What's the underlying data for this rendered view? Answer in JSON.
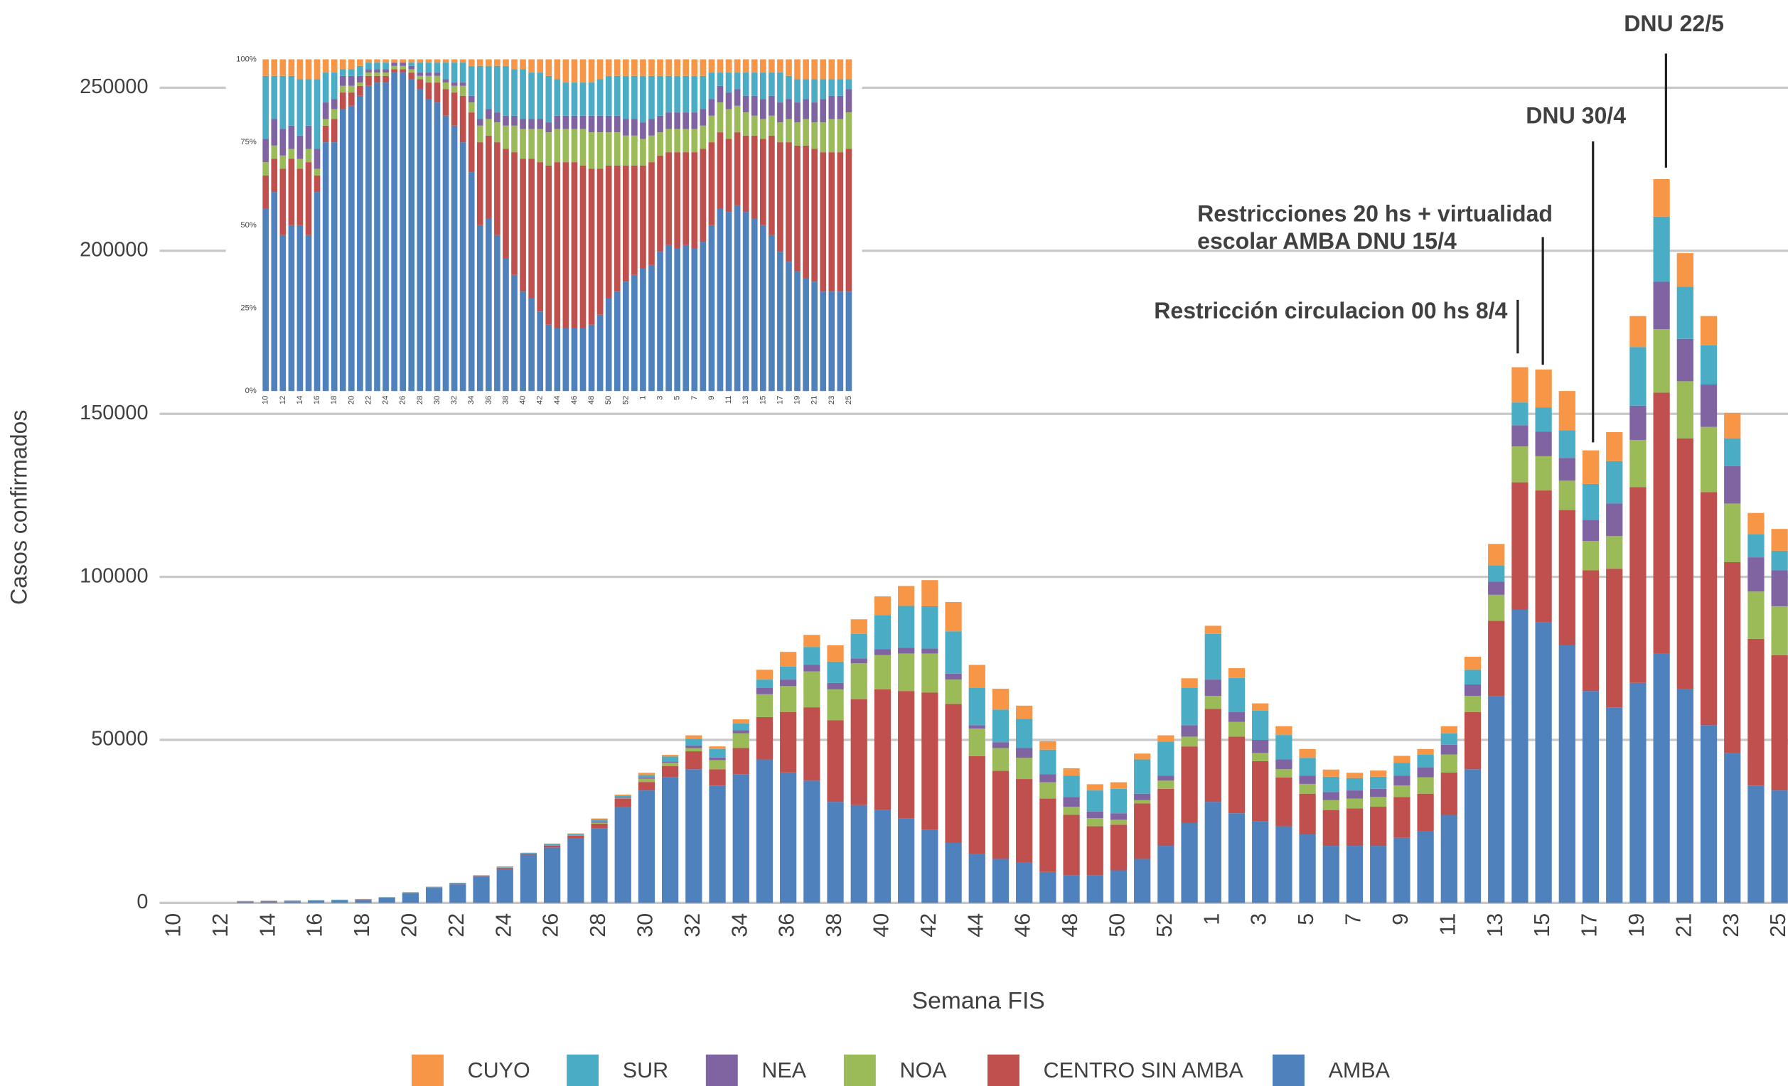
{
  "chart_data": [
    {
      "type": "bar",
      "stacked": true,
      "x_label": "Semana FIS",
      "y_label": "Casos confirmados",
      "categories": [
        "10",
        null,
        "12",
        null,
        "14",
        null,
        "16",
        null,
        "18",
        null,
        "20",
        null,
        "22",
        null,
        "24",
        null,
        "26",
        null,
        "28",
        null,
        "30",
        null,
        "32",
        null,
        "34",
        null,
        "36",
        null,
        "38",
        null,
        "40",
        null,
        "42",
        null,
        "44",
        null,
        "46",
        null,
        "48",
        null,
        "50",
        null,
        "52",
        null,
        "1",
        null,
        "3",
        null,
        "5",
        null,
        "7",
        null,
        "9",
        null,
        "11",
        null,
        "13",
        null,
        "15",
        null,
        "17",
        null,
        "19",
        null,
        "21",
        null,
        "23",
        null,
        "25"
      ],
      "ylim": [
        0,
        250000
      ],
      "yticks": [
        0,
        50000,
        100000,
        150000,
        200000,
        250000
      ],
      "grid": true,
      "legend": "bottom",
      "annotations": [
        [
          "Restricción circulacion 00 hs  8/4"
        ],
        [
          "Restricciones  20  hs  +  virtualidad",
          "escolar AMBA DNU  15/4"
        ],
        [
          "DNU 30/4"
        ],
        [
          "DNU 22/5"
        ]
      ],
      "series": [
        {
          "name": "AMBA",
          "color": "#4f81bd",
          "values": [
            0,
            0,
            0,
            380,
            420,
            480,
            560,
            620,
            900,
            1500,
            2800,
            4500,
            5700,
            8000,
            10400,
            14800,
            17000,
            19800,
            22800,
            29500,
            34500,
            38500,
            41000,
            36000,
            39500,
            44000,
            40000,
            37500,
            31000,
            30000,
            28500,
            26000,
            22500,
            18500,
            15000,
            13500,
            12500,
            9500,
            8500,
            8500,
            10000,
            13500,
            17500,
            24500,
            31000,
            27500,
            25000,
            23500,
            21000,
            17500,
            17500,
            17500,
            20000,
            22000,
            27000,
            41000,
            63500,
            90000,
            86000,
            79000,
            65000,
            60000,
            67500,
            76500,
            65500,
            54500,
            46000,
            36000,
            34500
          ]
        },
        {
          "name": "CENTRO SIN AMBA",
          "color": "#c0504d",
          "values": [
            0,
            0,
            0,
            70,
            90,
            100,
            160,
            130,
            120,
            100,
            150,
            200,
            250,
            250,
            400,
            300,
            600,
            800,
            1500,
            2500,
            2600,
            3500,
            5500,
            5000,
            8000,
            13000,
            18500,
            22500,
            25000,
            32500,
            37000,
            39000,
            42000,
            42500,
            30000,
            27000,
            25500,
            22500,
            18500,
            15000,
            14000,
            17000,
            17500,
            23500,
            28500,
            23500,
            18500,
            15000,
            12500,
            11000,
            11500,
            12000,
            12500,
            11500,
            13000,
            17500,
            23000,
            39000,
            40500,
            41500,
            37000,
            42500,
            60000,
            80000,
            77000,
            71500,
            58500,
            45000,
            41500
          ]
        },
        {
          "name": "NOA",
          "color": "#9bbb59",
          "values": [
            0,
            0,
            0,
            20,
            30,
            30,
            30,
            30,
            20,
            20,
            30,
            30,
            30,
            30,
            50,
            40,
            60,
            100,
            300,
            200,
            1000,
            1000,
            1000,
            2800,
            4500,
            7000,
            8000,
            11000,
            9500,
            11000,
            10500,
            11500,
            12000,
            7500,
            8500,
            7000,
            6500,
            5000,
            2500,
            2500,
            1500,
            1000,
            2500,
            3000,
            4000,
            4500,
            2500,
            2500,
            3000,
            3000,
            3000,
            3000,
            3500,
            5000,
            5500,
            5000,
            8000,
            11000,
            10500,
            9000,
            9000,
            10000,
            14500,
            19500,
            17500,
            20000,
            18000,
            14500,
            15000
          ]
        },
        {
          "name": "NEA",
          "color": "#8064a2",
          "values": [
            0,
            0,
            0,
            30,
            50,
            60,
            30,
            40,
            30,
            30,
            40,
            40,
            40,
            40,
            50,
            40,
            80,
            100,
            300,
            300,
            400,
            400,
            800,
            800,
            1000,
            2000,
            2000,
            2000,
            2000,
            1500,
            1800,
            1800,
            1500,
            1800,
            1000,
            1800,
            3000,
            2500,
            3000,
            2000,
            2000,
            2000,
            1500,
            3500,
            5000,
            3000,
            4000,
            3000,
            2500,
            2500,
            2500,
            2500,
            3000,
            3000,
            3000,
            3500,
            4000,
            6500,
            7500,
            7000,
            6500,
            10000,
            10500,
            14500,
            13000,
            13000,
            11500,
            10500,
            11000
          ]
        },
        {
          "name": "SUR",
          "color": "#4bacc6",
          "values": [
            0,
            0,
            0,
            80,
            90,
            110,
            100,
            150,
            100,
            120,
            230,
            180,
            140,
            140,
            250,
            200,
            400,
            400,
            700,
            400,
            700,
            1500,
            2000,
            2600,
            2000,
            2500,
            4000,
            5500,
            6500,
            7500,
            10500,
            12800,
            13000,
            13000,
            11500,
            10000,
            9000,
            7500,
            6500,
            6500,
            7500,
            10500,
            10500,
            11500,
            14000,
            10500,
            9000,
            7500,
            5500,
            4700,
            3800,
            3700,
            4000,
            4000,
            3500,
            4500,
            5000,
            7000,
            7500,
            8500,
            11000,
            13000,
            18000,
            20000,
            16000,
            12000,
            8500,
            7000,
            6000
          ]
        },
        {
          "name": "CUYO",
          "color": "#f79646",
          "values": [
            0,
            0,
            0,
            20,
            20,
            20,
            20,
            30,
            30,
            30,
            50,
            50,
            40,
            40,
            50,
            20,
            60,
            100,
            300,
            300,
            700,
            500,
            1100,
            800,
            1300,
            3000,
            4500,
            3700,
            5000,
            4500,
            5700,
            6100,
            8000,
            9000,
            7000,
            6400,
            4000,
            2600,
            2300,
            1900,
            2000,
            1800,
            1900,
            2900,
            2500,
            3000,
            2200,
            2700,
            2700,
            2200,
            1600,
            1900,
            2100,
            1700,
            2200,
            4000,
            6600,
            10800,
            11600,
            12000,
            10300,
            8900,
            9500,
            11500,
            10300,
            9000,
            7800,
            6600,
            6700
          ]
        }
      ]
    },
    {
      "type": "bar",
      "stacked": true,
      "categories": [
        "10",
        null,
        "12",
        null,
        "14",
        null,
        "16",
        null,
        "18",
        null,
        "20",
        null,
        "22",
        null,
        "24",
        null,
        "26",
        null,
        "28",
        null,
        "30",
        null,
        "32",
        null,
        "34",
        null,
        "36",
        null,
        "38",
        null,
        "40",
        null,
        "42",
        null,
        "44",
        null,
        "46",
        null,
        "48",
        null,
        "50",
        null,
        "52",
        null,
        "1",
        null,
        "3",
        null,
        "5",
        null,
        "7",
        null,
        "9",
        null,
        "11",
        null,
        "13",
        null,
        "15",
        null,
        "17",
        null,
        "19",
        null,
        "21",
        null,
        "23",
        null,
        "25"
      ],
      "ylim": [
        0,
        100
      ],
      "yticks": [
        {
          "value": 0,
          "label": "0%"
        },
        {
          "value": 25,
          "label": "25%"
        },
        {
          "value": 50,
          "label": "50%"
        },
        {
          "value": 75,
          "label": "75%"
        },
        {
          "value": 100,
          "label": "100%"
        }
      ],
      "grid": false,
      "series": [
        {
          "name": "AMBA",
          "color": "#4f81bd",
          "values": [
            55,
            60,
            47,
            50,
            50,
            47,
            60,
            75,
            75,
            85,
            86,
            89,
            92,
            93,
            93,
            96,
            96,
            94,
            91,
            88,
            87,
            83,
            80,
            75,
            66,
            50,
            52,
            47,
            40,
            35,
            30,
            28,
            24,
            20,
            19,
            19,
            19,
            19,
            20,
            23,
            28,
            30,
            33,
            35,
            37,
            38,
            42,
            44,
            43,
            44,
            43,
            45,
            50,
            55,
            54,
            56,
            54,
            52,
            50,
            47,
            42,
            39,
            36,
            34,
            33,
            30,
            30,
            30,
            30
          ]
        },
        {
          "name": "CENTRO SIN AMBA",
          "color": "#c0504d",
          "values": [
            10,
            10,
            20,
            20,
            17,
            22,
            5,
            5,
            7,
            5,
            4,
            3,
            3,
            2,
            2,
            1,
            1,
            2,
            3,
            5,
            6,
            8,
            10,
            14,
            18,
            25,
            25,
            28,
            33,
            37,
            40,
            42,
            45,
            48,
            50,
            50,
            50,
            49,
            47,
            44,
            40,
            38,
            35,
            33,
            31,
            31,
            29,
            28,
            29,
            28,
            29,
            28,
            25,
            23,
            22,
            22,
            23,
            25,
            26,
            30,
            33,
            36,
            38,
            40,
            40,
            42,
            42,
            42,
            43
          ]
        },
        {
          "name": "NOA",
          "color": "#9bbb59",
          "values": [
            4,
            4,
            4,
            3,
            3,
            4,
            2,
            2,
            3,
            2,
            2,
            1,
            1,
            1,
            1,
            1,
            1,
            1,
            1,
            2,
            2,
            2,
            2,
            3,
            3,
            5,
            5,
            6,
            7,
            8,
            9,
            9,
            10,
            10,
            10,
            10,
            10,
            11,
            11,
            11,
            10,
            10,
            9,
            9,
            8,
            8,
            7,
            7,
            7,
            7,
            7,
            7,
            8,
            9,
            9,
            8,
            7,
            6,
            6,
            6,
            6,
            7,
            7,
            8,
            8,
            9,
            10,
            10,
            11
          ]
        },
        {
          "name": "NEA",
          "color": "#8064a2",
          "values": [
            7,
            8,
            8,
            7,
            7,
            7,
            6,
            5,
            3,
            3,
            3,
            2,
            1,
            1,
            1,
            1,
            1,
            1,
            1,
            1,
            1,
            1,
            1,
            1,
            2,
            2,
            3,
            3,
            3,
            3,
            3,
            3,
            3,
            3,
            4,
            4,
            4,
            4,
            5,
            5,
            5,
            5,
            5,
            5,
            5,
            5,
            5,
            5,
            5,
            5,
            5,
            5,
            5,
            5,
            5,
            5,
            5,
            6,
            6,
            6,
            6,
            6,
            6,
            6,
            6,
            7,
            7,
            7,
            7
          ]
        },
        {
          "name": "SUR",
          "color": "#4bacc6",
          "values": [
            19,
            13,
            16,
            15,
            17,
            14,
            21,
            9,
            8,
            2,
            2,
            3,
            2,
            2,
            2,
            0,
            0,
            1,
            3,
            3,
            3,
            5,
            6,
            6,
            9,
            16,
            13,
            14,
            15,
            14,
            15,
            14,
            14,
            14,
            11,
            10,
            10,
            10,
            10,
            11,
            12,
            12,
            13,
            13,
            14,
            13,
            12,
            11,
            11,
            11,
            11,
            10,
            8,
            4,
            6,
            5,
            7,
            7,
            8,
            7,
            9,
            7,
            7,
            6,
            7,
            6,
            5,
            5,
            3
          ]
        },
        {
          "name": "CUYO",
          "color": "#f79646",
          "values": [
            5,
            5,
            5,
            5,
            6,
            6,
            6,
            4,
            4,
            3,
            3,
            2,
            1,
            1,
            1,
            1,
            1,
            1,
            1,
            1,
            1,
            1,
            1,
            1,
            2,
            2,
            2,
            2,
            2,
            3,
            3,
            4,
            4,
            5,
            6,
            7,
            7,
            7,
            7,
            6,
            5,
            5,
            5,
            5,
            5,
            5,
            5,
            5,
            5,
            5,
            5,
            5,
            4,
            4,
            4,
            4,
            4,
            4,
            4,
            4,
            4,
            5,
            6,
            6,
            6,
            6,
            6,
            6,
            6
          ]
        }
      ]
    }
  ]
}
